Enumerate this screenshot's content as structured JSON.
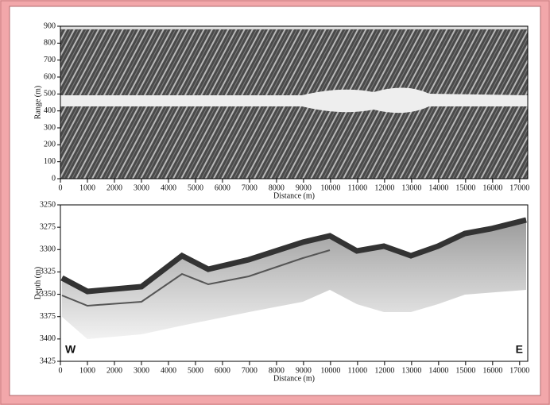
{
  "chart_data": [
    {
      "type": "image",
      "xlabel": "Distance (m)",
      "ylabel": "Range (m)",
      "xlim": [
        0,
        17300
      ],
      "ylim": [
        0,
        900
      ],
      "xticks": [
        0,
        1000,
        2000,
        3000,
        4000,
        5000,
        6000,
        7000,
        8000,
        9000,
        10000,
        11000,
        12000,
        13000,
        14000,
        15000,
        16000,
        17000
      ],
      "yticks": [
        0,
        100,
        200,
        300,
        400,
        500,
        600,
        700,
        800,
        900
      ]
    },
    {
      "type": "image",
      "xlabel": "Distance (m)",
      "ylabel": "Depth (m)",
      "xlim": [
        0,
        17300
      ],
      "ylim": [
        3425,
        3250
      ],
      "xticks": [
        0,
        1000,
        2000,
        3000,
        4000,
        5000,
        6000,
        7000,
        8000,
        9000,
        10000,
        11000,
        12000,
        13000,
        14000,
        15000,
        16000,
        17000
      ],
      "yticks": [
        3250,
        3275,
        3300,
        3325,
        3350,
        3375,
        3400,
        3425
      ],
      "annotations": [
        "W",
        "E"
      ]
    }
  ]
}
